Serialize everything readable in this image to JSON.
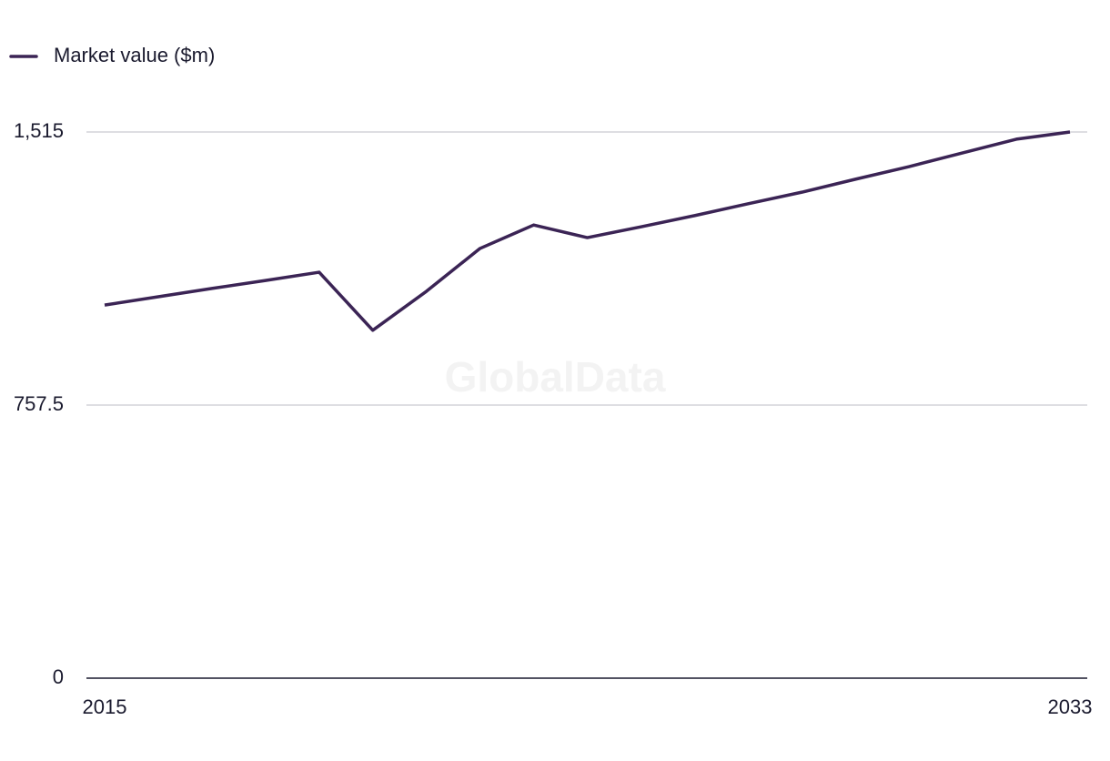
{
  "chart_data": {
    "type": "line",
    "watermark": "GlobalData",
    "x": [
      2015,
      2016,
      2017,
      2018,
      2019,
      2020,
      2021,
      2022,
      2023,
      2024,
      2025,
      2026,
      2027,
      2028,
      2029,
      2030,
      2031,
      2032,
      2033
    ],
    "series": [
      {
        "name": "Market value ($m)",
        "color": "#3b2455",
        "values": [
          1035,
          1058,
          1081,
          1103,
          1126,
          965,
          1073,
          1192,
          1257,
          1222,
          1252,
          1283,
          1316,
          1348,
          1384,
          1419,
          1457,
          1495,
          1515
        ]
      }
    ],
    "xlim": [
      2015,
      2033
    ],
    "xticks": [
      2015,
      2033
    ],
    "ylim": [
      0,
      1515
    ],
    "yticks": [
      0,
      757.5,
      {
        "value": 1515,
        "label": "1,515"
      }
    ],
    "grid": true,
    "legend": "top-left"
  }
}
